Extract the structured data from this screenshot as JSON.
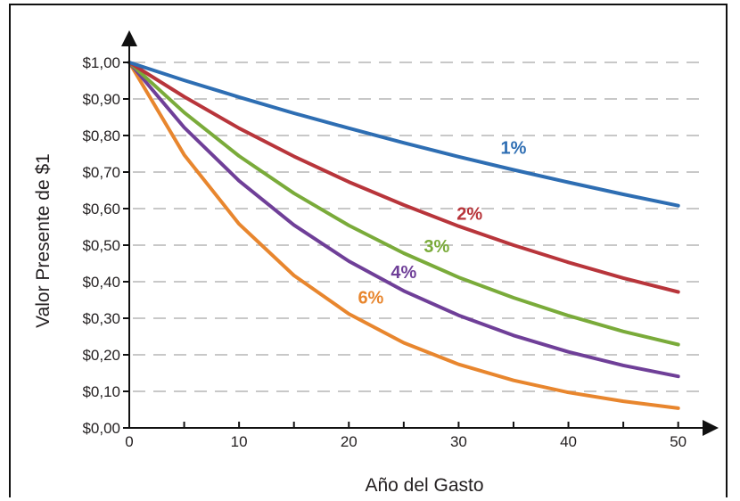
{
  "chart_data": {
    "type": "line",
    "title": "",
    "xlabel": "Año del Gasto",
    "ylabel": "Valor Presente de $1",
    "xlim": [
      0,
      51
    ],
    "ylim": [
      0,
      1.0
    ],
    "x_ticks": [
      0,
      10,
      20,
      30,
      40,
      50
    ],
    "x_tick_labels": [
      "0",
      "10",
      "20",
      "30",
      "40",
      "50"
    ],
    "y_ticks": [
      0,
      0.1,
      0.2,
      0.3,
      0.4,
      0.5,
      0.6,
      0.7,
      0.8,
      0.9,
      1.0
    ],
    "y_tick_labels": [
      "$0,00",
      "$0,10",
      "$0,20",
      "$0,30",
      "$0,40",
      "$0,50",
      "$0,60",
      "$0,70",
      "$0,80",
      "$0,90",
      "$1,00"
    ],
    "grid": "horizontal dashed",
    "x": [
      0,
      5,
      10,
      15,
      20,
      25,
      30,
      35,
      40,
      45,
      50
    ],
    "series": [
      {
        "name": "1%",
        "color": "#2e6eb3",
        "label_at": [
          35,
          0.75
        ],
        "values": [
          1.0,
          0.951,
          0.905,
          0.861,
          0.82,
          0.78,
          0.742,
          0.706,
          0.672,
          0.639,
          0.608
        ]
      },
      {
        "name": "2%",
        "color": "#b8353b",
        "label_at": [
          31,
          0.57
        ],
        "values": [
          1.0,
          0.906,
          0.82,
          0.743,
          0.673,
          0.61,
          0.552,
          0.5,
          0.453,
          0.41,
          0.372
        ]
      },
      {
        "name": "3%",
        "color": "#7aab3a",
        "label_at": [
          28,
          0.48
        ],
        "values": [
          1.0,
          0.863,
          0.744,
          0.642,
          0.554,
          0.478,
          0.412,
          0.356,
          0.307,
          0.264,
          0.228
        ]
      },
      {
        "name": "4%",
        "color": "#6f3f98",
        "label_at": [
          25,
          0.41
        ],
        "values": [
          1.0,
          0.822,
          0.676,
          0.555,
          0.456,
          0.375,
          0.308,
          0.253,
          0.208,
          0.171,
          0.141
        ]
      },
      {
        "name": "6%",
        "color": "#e8862e",
        "label_at": [
          22,
          0.34
        ],
        "values": [
          1.0,
          0.747,
          0.558,
          0.417,
          0.312,
          0.233,
          0.174,
          0.13,
          0.097,
          0.073,
          0.054
        ]
      }
    ]
  }
}
